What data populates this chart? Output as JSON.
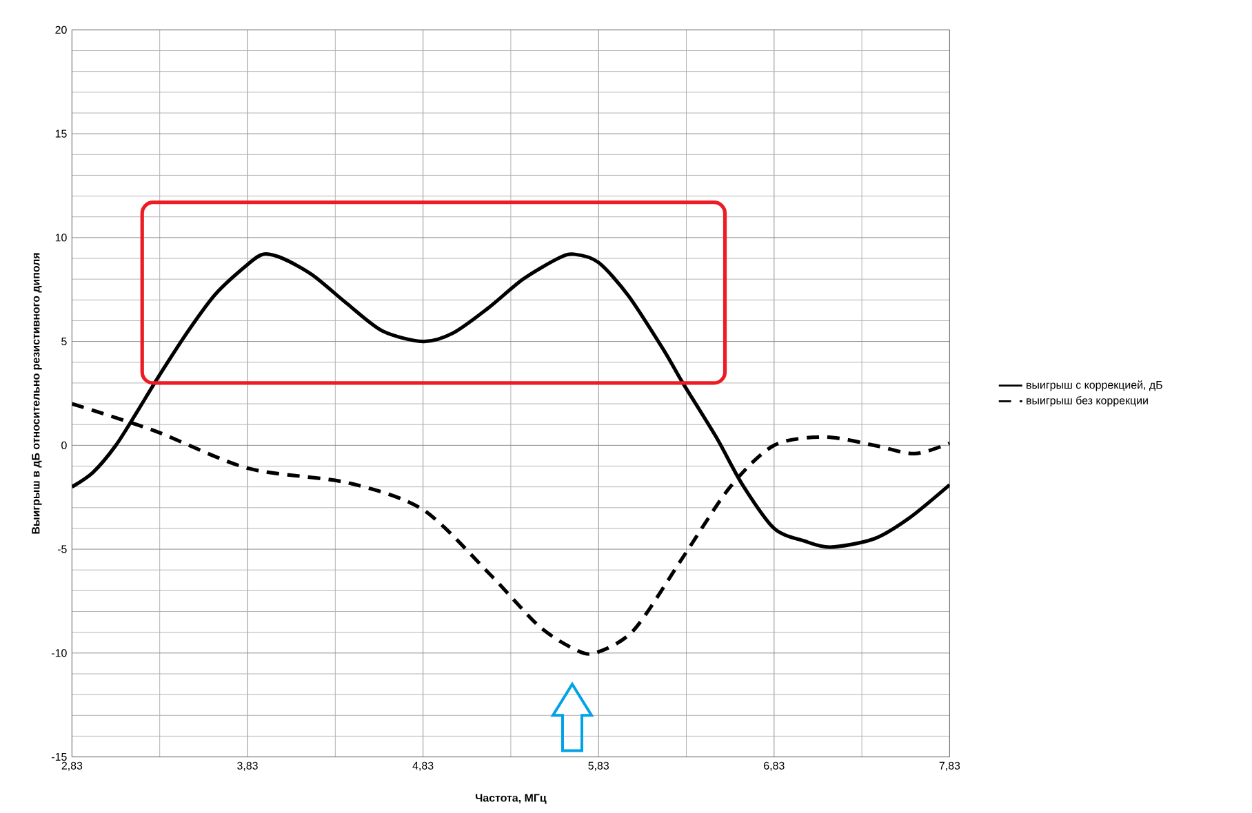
{
  "chart_data": {
    "type": "line",
    "xlabel": "Частота,  МГц",
    "ylabel": "Выигрыш в дБ относительно  резистивного  диполя",
    "xlim": [
      2.83,
      7.83
    ],
    "ylim": [
      -15,
      20
    ],
    "xticks": [
      {
        "value": 2.83,
        "label": "2,83"
      },
      {
        "value": 3.83,
        "label": "3,83"
      },
      {
        "value": 4.83,
        "label": "4,83"
      },
      {
        "value": 5.83,
        "label": "5,83"
      },
      {
        "value": 6.83,
        "label": "6,83"
      },
      {
        "value": 7.83,
        "label": "7,83"
      }
    ],
    "yticks": [
      -15,
      -10,
      -5,
      0,
      5,
      10,
      15,
      20
    ],
    "grid": true,
    "legend": "right",
    "series": [
      {
        "name": "выигрыш с коррекцией, дБ",
        "color": "#000000",
        "line_style": "solid",
        "x": [
          2.83,
          2.95,
          3.08,
          3.2,
          3.33,
          3.5,
          3.65,
          3.83,
          3.92,
          4.03,
          4.2,
          4.4,
          4.6,
          4.83,
          5.0,
          5.2,
          5.4,
          5.6,
          5.69,
          5.83,
          6.0,
          6.2,
          6.31,
          6.5,
          6.65,
          6.83,
          7.0,
          7.15,
          7.4,
          7.6,
          7.83
        ],
        "values": [
          -2.0,
          -1.3,
          0,
          1.6,
          3.4,
          5.6,
          7.3,
          8.7,
          9.2,
          9.0,
          8.2,
          6.8,
          5.5,
          5.0,
          5.4,
          6.6,
          8.0,
          9.0,
          9.2,
          8.8,
          7.2,
          4.6,
          3.0,
          0.4,
          -1.9,
          -4.0,
          -4.6,
          -4.9,
          -4.5,
          -3.5,
          -1.9
        ]
      },
      {
        "name": "выигрыш без коррекции",
        "color": "#000000",
        "line_style": "dashed",
        "x": [
          2.83,
          3.3,
          3.83,
          4.4,
          4.83,
          5.21,
          5.49,
          5.69,
          5.81,
          6.03,
          6.31,
          6.58,
          6.83,
          7.12,
          7.4,
          7.63,
          7.83
        ],
        "values": [
          2.0,
          0.7,
          -1.1,
          -1.8,
          -3.1,
          -6.2,
          -8.7,
          -9.8,
          -10.0,
          -8.9,
          -5.4,
          -2.0,
          0,
          0.4,
          0,
          -0.4,
          0.1
        ]
      }
    ]
  }
}
